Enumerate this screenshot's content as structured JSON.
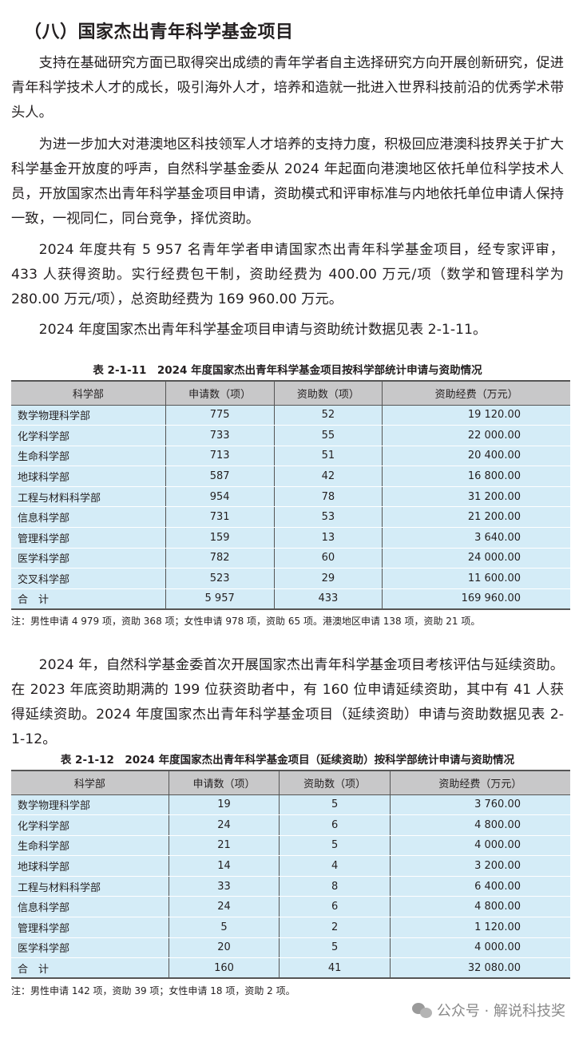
{
  "title": "（八）国家杰出青年科学基金项目",
  "paragraphs": [
    "支持在基础研究方面已取得突出成绩的青年学者自主选择研究方向开展创新研究，促进青年科学技术人才的成长，吸引海外人才，培养和造就一批进入世界科技前沿的优秀学术带头人。",
    "为进一步加大对港澳地区科技领军人才培养的支持力度，积极回应港澳科技界关于扩大科学基金开放度的呼声，自然科学基金委从 2024 年起面向港澳地区依托单位科学技术人员，开放国家杰出青年科学基金项目申请，资助模式和评审标准与内地依托单位申请人保持一致，一视同仁，同台竞争，择优资助。",
    "2024 年度共有 5 957 名青年学者申请国家杰出青年科学基金项目，经专家评审，433 人获得资助。实行经费包干制，资助经费为 400.00 万元/项（数学和管理科学为 280.00 万元/项），总资助经费为 169 960.00 万元。",
    "2024 年度国家杰出青年科学基金项目申请与资助统计数据见表 2-1-11。",
    "2024 年，自然科学基金委首次开展国家杰出青年科学基金项目考核评估与延续资助。在 2023 年底资助期满的 199 位获资助者中，有 160 位申请延续资助，其中有 41 人获得延续资助。2024 年度国家杰出青年科学基金项目（延续资助）申请与资助数据见表 2-1-12。"
  ],
  "table1": {
    "caption": "表 2-1-11　2024 年度国家杰出青年科学基金项目按科学部统计申请与资助情况",
    "headers": [
      "科学部",
      "申请数（项）",
      "资助数（项）",
      "资助经费（万元）"
    ],
    "rows": [
      [
        "数学物理科学部",
        "775",
        "52",
        "19 120.00"
      ],
      [
        "化学科学部",
        "733",
        "55",
        "22 000.00"
      ],
      [
        "生命科学部",
        "713",
        "51",
        "20 400.00"
      ],
      [
        "地球科学部",
        "587",
        "42",
        "16 800.00"
      ],
      [
        "工程与材料科学部",
        "954",
        "78",
        "31 200.00"
      ],
      [
        "信息科学部",
        "731",
        "53",
        "21 200.00"
      ],
      [
        "管理科学部",
        "159",
        "13",
        "3 640.00"
      ],
      [
        "医学科学部",
        "782",
        "60",
        "24 000.00"
      ],
      [
        "交叉科学部",
        "523",
        "29",
        "11 600.00"
      ],
      [
        "合　计",
        "5 957",
        "433",
        "169 960.00"
      ]
    ],
    "note": "注：男性申请 4 979 项，资助 368 项；女性申请 978 项，资助 65 项。港澳地区申请 138 项，资助 21 项。"
  },
  "table2": {
    "caption": "表 2-1-12　2024 年度国家杰出青年科学基金项目（延续资助）按科学部统计申请与资助情况",
    "headers": [
      "科学部",
      "申请数（项）",
      "资助数（项）",
      "资助经费（万元）"
    ],
    "rows": [
      [
        "数学物理科学部",
        "19",
        "5",
        "3 760.00"
      ],
      [
        "化学科学部",
        "24",
        "6",
        "4 800.00"
      ],
      [
        "生命科学部",
        "21",
        "5",
        "4 000.00"
      ],
      [
        "地球科学部",
        "14",
        "4",
        "3 200.00"
      ],
      [
        "工程与材料科学部",
        "33",
        "8",
        "6 400.00"
      ],
      [
        "信息科学部",
        "24",
        "6",
        "4 800.00"
      ],
      [
        "管理科学部",
        "5",
        "2",
        "1 120.00"
      ],
      [
        "医学科学部",
        "20",
        "5",
        "4 000.00"
      ],
      [
        "合　计",
        "160",
        "41",
        "32 080.00"
      ]
    ],
    "note": "注：男性申请 142 项，资助 39 项；女性申请 18 项，资助 2 项。"
  },
  "watermark": {
    "text": "公众号 · 解说科技奖",
    "icon": "wechat-icon"
  }
}
